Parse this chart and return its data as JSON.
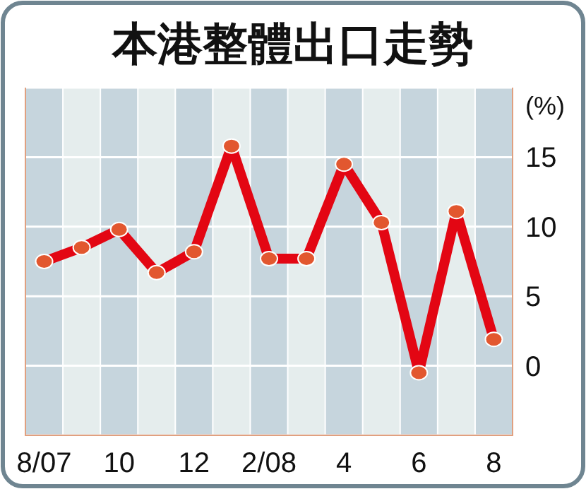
{
  "chart_data": {
    "type": "line",
    "title": "本港整體出口走勢",
    "ylabel": "(%)",
    "categories": [
      "8/07",
      null,
      "10",
      null,
      "12",
      null,
      "2/08",
      null,
      "4",
      null,
      "6",
      null,
      "8"
    ],
    "series": [
      {
        "color": "#e30613",
        "values": [
          7.5,
          8.5,
          9.8,
          6.7,
          8.2,
          15.8,
          7.7,
          7.7,
          14.5,
          10.3,
          -0.5,
          11.1,
          1.9
        ]
      }
    ],
    "ylim": [
      -5,
      20
    ],
    "yticks": [
      {
        "value": -5,
        "label": null
      },
      0,
      5,
      10,
      15,
      {
        "value": 20,
        "label": null
      }
    ],
    "grid": "y",
    "marker": "circle",
    "line_style": "solid"
  }
}
